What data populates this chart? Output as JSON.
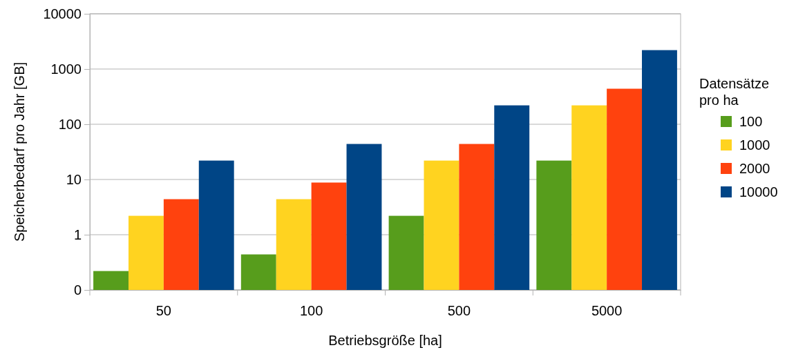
{
  "chart_data": {
    "type": "bar",
    "xlabel": "Betriebsgröße [ha]",
    "ylabel": "Speicherbedarf pro Jahr [GB]",
    "legend_title": "Datensätze pro ha",
    "categories": [
      "50",
      "100",
      "500",
      "5000"
    ],
    "series": [
      {
        "name": "100",
        "color": "#579d1c",
        "values": [
          0.22,
          0.44,
          2.2,
          22
        ]
      },
      {
        "name": "1000",
        "color": "#ffd320",
        "values": [
          2.2,
          4.4,
          22,
          220
        ]
      },
      {
        "name": "2000",
        "color": "#ff420e",
        "values": [
          4.4,
          8.8,
          44,
          440
        ]
      },
      {
        "name": "10000",
        "color": "#004586",
        "values": [
          22,
          44,
          220,
          2200
        ]
      }
    ],
    "log": true,
    "ylim": [
      0.1,
      10000
    ],
    "yticks": [
      {
        "value": 0.1,
        "label": "0"
      },
      1,
      10,
      100,
      1000,
      10000
    ],
    "grid": "y",
    "legend": "right"
  }
}
